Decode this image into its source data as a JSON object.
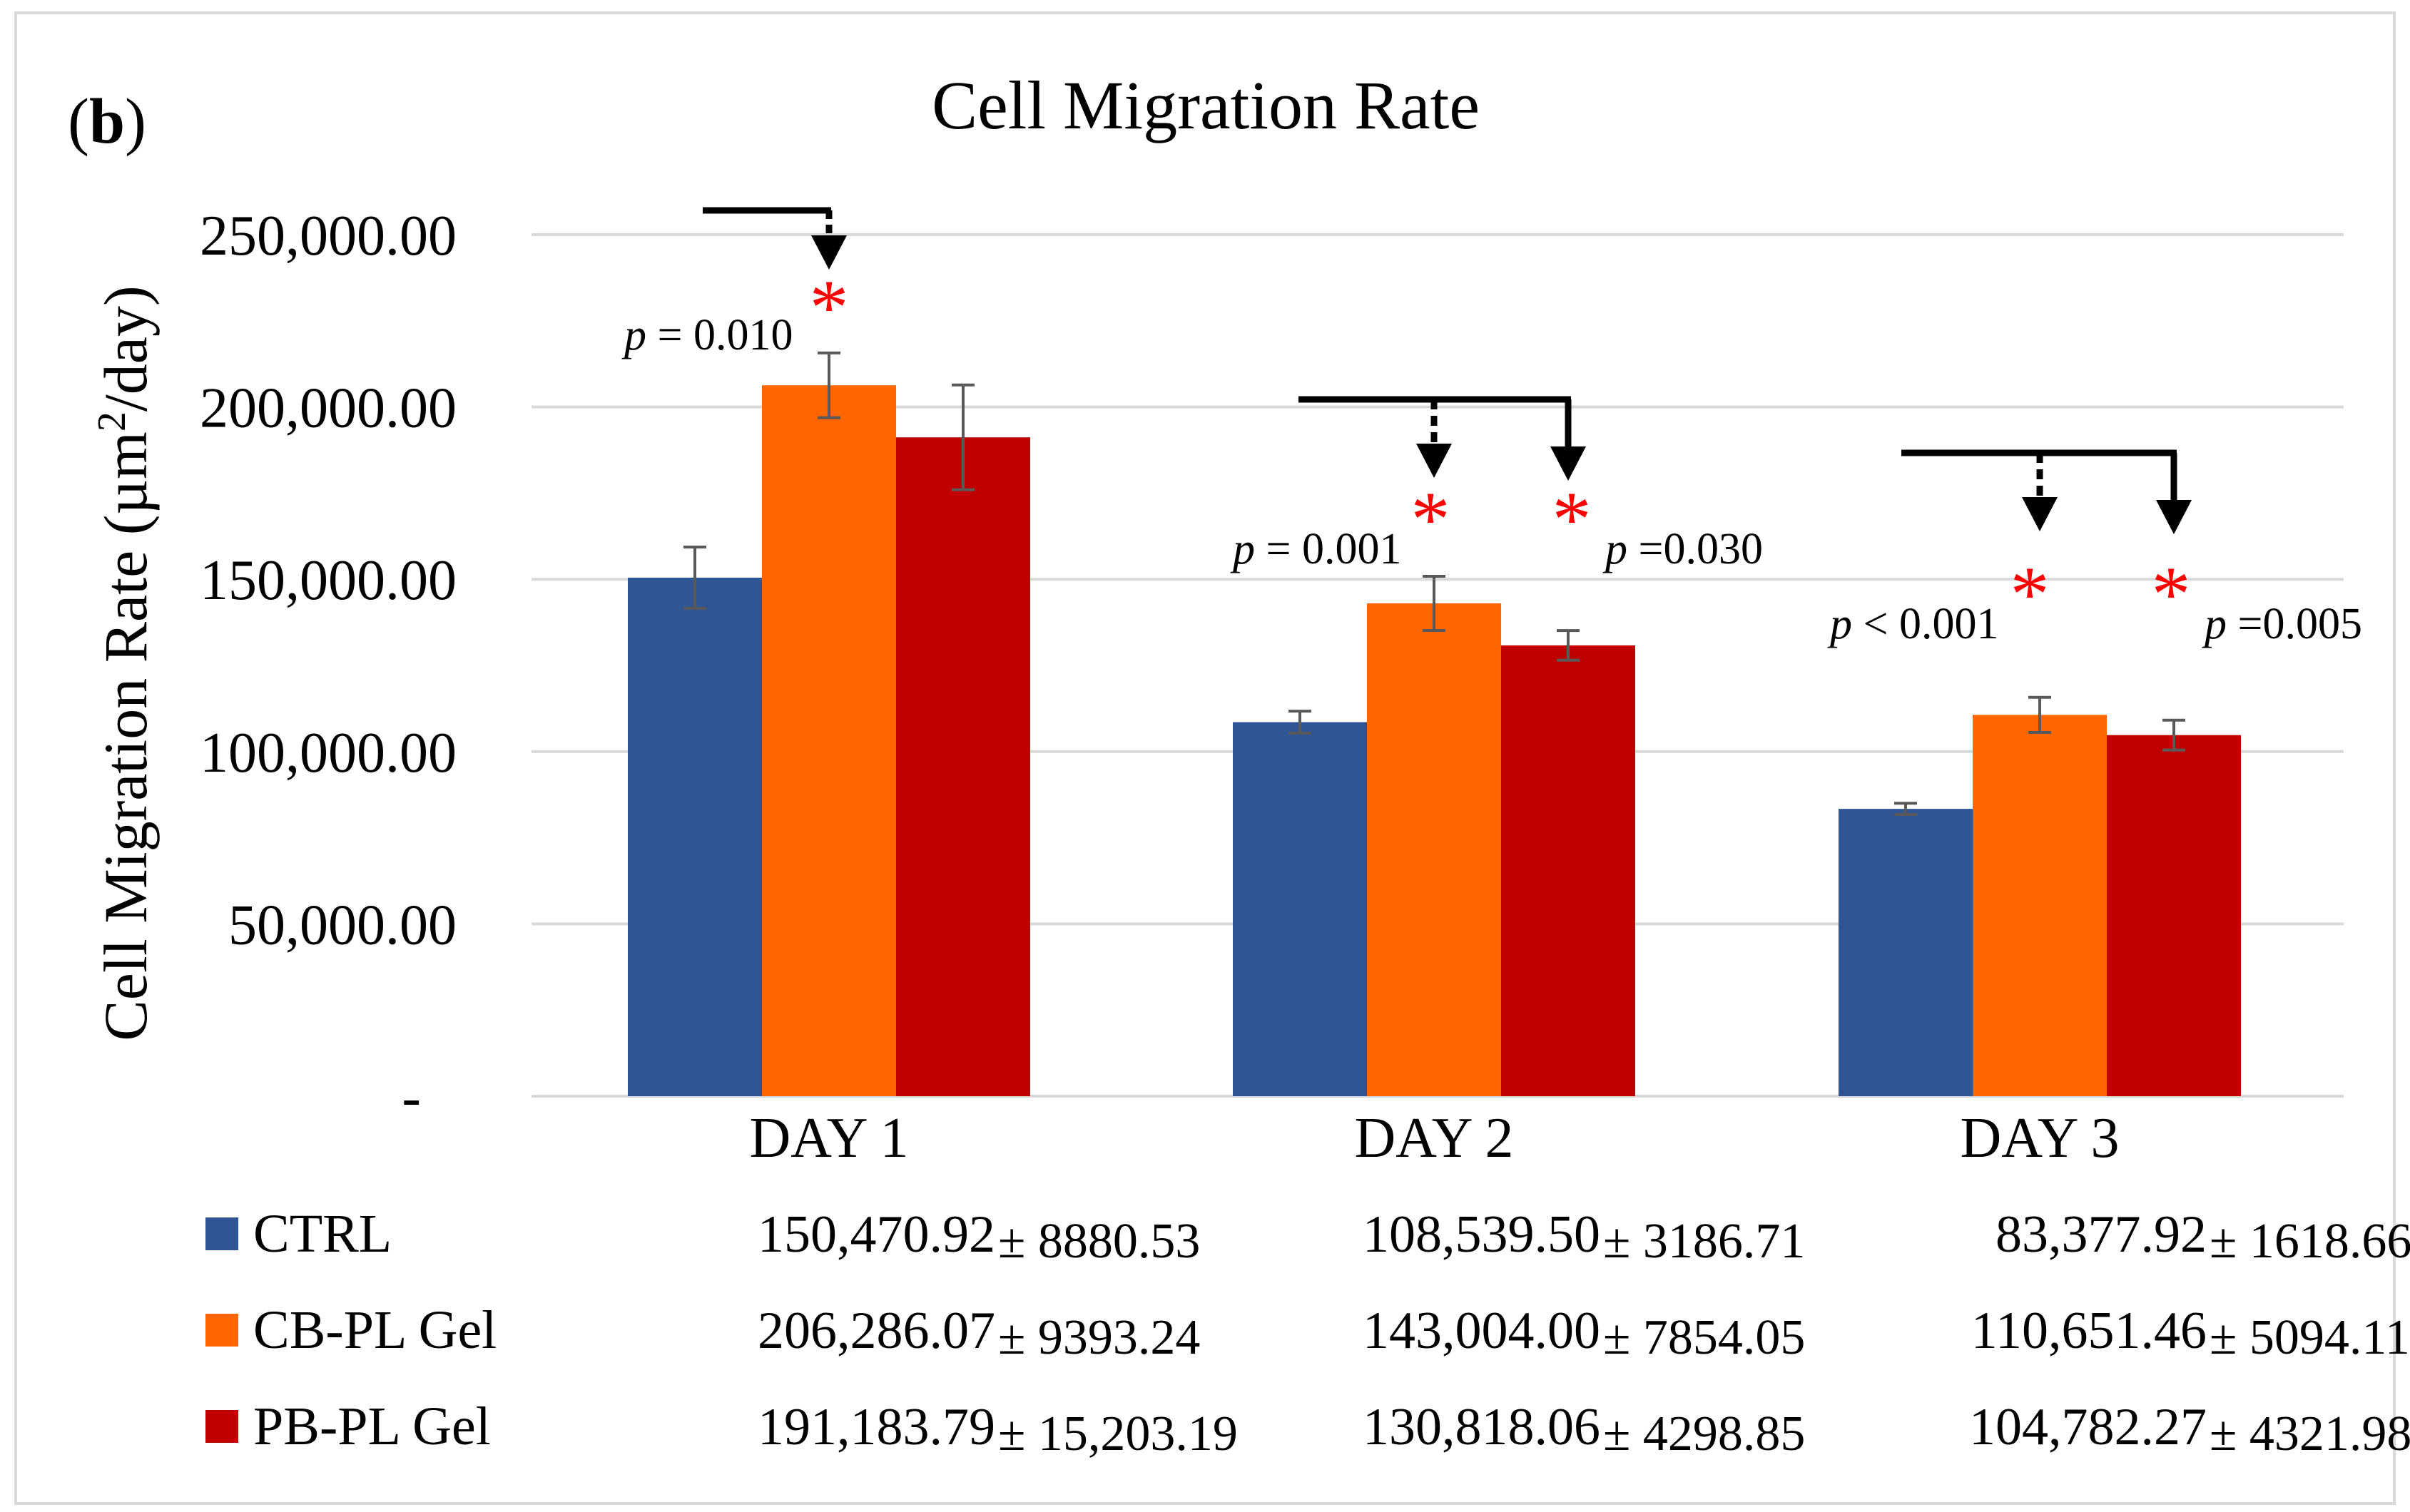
{
  "panel_label": "b",
  "chart_data": {
    "type": "bar",
    "title": "Cell Migration Rate",
    "ylabel_prefix": "Cell Migration Rate (µm",
    "ylabel_sup": "2",
    "ylabel_suffix": "/day)",
    "ylim": [
      0,
      250000
    ],
    "yticks": [
      "-",
      "50,000.00",
      "100,000.00",
      "150,000.00",
      "200,000.00",
      "250,000.00"
    ],
    "ytick_values": [
      0,
      50000,
      100000,
      150000,
      200000,
      250000
    ],
    "grid": true,
    "categories": [
      "DAY 1",
      "DAY 2",
      "DAY 3"
    ],
    "series": [
      {
        "name": "CTRL",
        "color": "#2F5597",
        "values": [
          150470.92,
          108539.5,
          83377.92
        ],
        "errors": [
          8880.53,
          3186.71,
          1618.66
        ],
        "table_values": [
          "150,470.92",
          "108,539.50",
          "83,377.92"
        ],
        "table_errors": [
          "8880.53",
          "3186.71",
          "1618.66"
        ]
      },
      {
        "name": "CB-PL Gel",
        "color": "#FF6600",
        "values": [
          206286.07,
          143004.0,
          110651.46
        ],
        "errors": [
          9393.24,
          7854.05,
          5094.11
        ],
        "table_values": [
          "206,286.07",
          "143,004.00",
          "110,651.46"
        ],
        "table_errors": [
          "9393.24",
          "7854.05",
          "5094.11"
        ]
      },
      {
        "name": "PB-PL Gel",
        "color": "#C00000",
        "values": [
          191183.79,
          130818.06,
          104782.27
        ],
        "errors": [
          15203.19,
          4298.85,
          4321.98
        ],
        "table_values": [
          "191,183.79",
          "130,818.06",
          "104,782.27"
        ],
        "table_errors": [
          "15,203.19",
          "4298.85",
          "4321.98"
        ]
      }
    ],
    "pm_symbol": "±",
    "asterisk": "*",
    "asterisk_color": "#FF0000",
    "annotations": [
      {
        "day": 0,
        "series": 1,
        "p_var": "p",
        "p_text": " = 0.010"
      },
      {
        "day": 1,
        "series": 1,
        "p_var": "p",
        "p_text": " = 0.001"
      },
      {
        "day": 1,
        "series": 2,
        "p_var": "p",
        "p_text": " =0.030"
      },
      {
        "day": 2,
        "series": 1,
        "p_var": "p",
        "p_text": " < 0.001"
      },
      {
        "day": 2,
        "series": 2,
        "p_var": "p",
        "p_text": " =0.005"
      }
    ]
  }
}
